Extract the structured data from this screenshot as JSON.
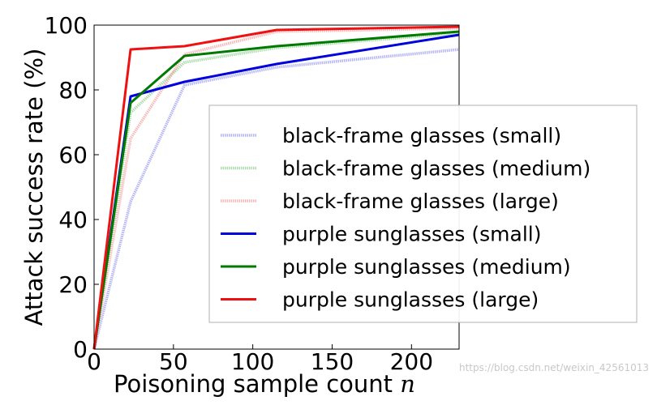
{
  "chart_data": {
    "type": "line",
    "xlabel": "Poisoning sample count",
    "xlabel_var": "n",
    "ylabel": "Attack success rate (%)",
    "xlim": [
      0,
      230
    ],
    "ylim": [
      0,
      100
    ],
    "xticks": [
      "0",
      "50",
      "100",
      "150",
      "200"
    ],
    "yticks": [
      "0",
      "20",
      "40",
      "60",
      "80",
      "100"
    ],
    "grid": false,
    "legend_position": "right",
    "series": [
      {
        "name": "black-frame glasses (small)",
        "style": "faint",
        "color": "#9a9af2",
        "x": [
          0,
          23,
          57,
          115,
          230
        ],
        "y": [
          0,
          45.5,
          81.5,
          87,
          92.5
        ]
      },
      {
        "name": "black-frame glasses (medium)",
        "style": "faint",
        "color": "#8fd08f",
        "x": [
          0,
          23,
          57,
          115,
          230
        ],
        "y": [
          0,
          73,
          88.5,
          93,
          97.5
        ]
      },
      {
        "name": "black-frame glasses (large)",
        "style": "faint",
        "color": "#f2a0a0",
        "x": [
          0,
          23,
          57,
          115,
          230
        ],
        "y": [
          0,
          65,
          91,
          98,
          99
        ]
      },
      {
        "name": "purple sunglasses (small)",
        "style": "solid",
        "color": "#0000dd",
        "x": [
          0,
          23,
          57,
          115,
          230
        ],
        "y": [
          0,
          78,
          82.5,
          88,
          97
        ]
      },
      {
        "name": "purple sunglasses (medium)",
        "style": "solid",
        "color": "#007a00",
        "x": [
          0,
          23,
          57,
          115,
          230
        ],
        "y": [
          0,
          76,
          90.5,
          93.5,
          98
        ]
      },
      {
        "name": "purple sunglasses (large)",
        "style": "solid",
        "color": "#ee1111",
        "x": [
          0,
          23,
          57,
          115,
          230
        ],
        "y": [
          0,
          92.5,
          93.5,
          98.5,
          99.5
        ]
      }
    ]
  },
  "watermark": "https://blog.csdn.net/weixin_42561013"
}
